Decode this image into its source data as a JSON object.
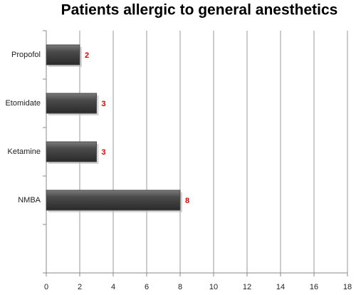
{
  "chart_data": {
    "type": "bar",
    "orientation": "horizontal",
    "title": "Patients allergic to general anesthetics",
    "categories": [
      "Propofol",
      "Etomidate",
      "Ketamine",
      "NMBA",
      null
    ],
    "values": [
      2,
      3,
      3,
      8,
      null
    ],
    "color": "#4a4a4a",
    "value_label_color": "#e00000",
    "xlim": [
      0,
      18
    ],
    "xticks": [
      0,
      2,
      4,
      6,
      8,
      10,
      12,
      14,
      16,
      18
    ],
    "grid": true
  }
}
